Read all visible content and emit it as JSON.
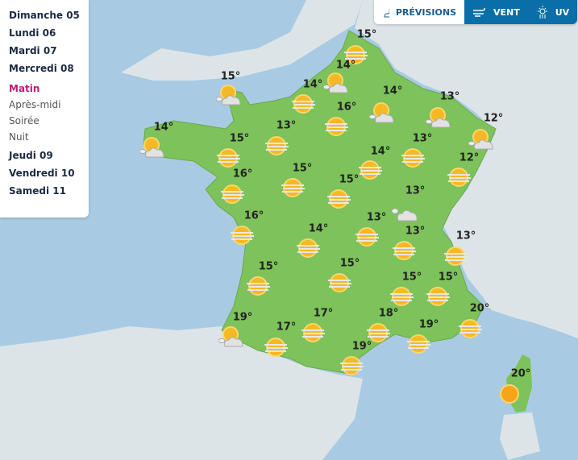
{
  "days_before": [
    "Dimanche 05",
    "Lundi 06",
    "Mardi 07",
    "Mercredi 08"
  ],
  "slots": [
    {
      "label": "Matin",
      "active": true
    },
    {
      "label": "Après-midi"
    },
    {
      "label": "Soirée"
    },
    {
      "label": "Nuit"
    }
  ],
  "days_after": [
    "Jeudi 09",
    "Vendredi 10",
    "Samedi 11"
  ],
  "tabs": [
    {
      "label": "PRÉVISIONS",
      "icon": "sun-cloud-icon",
      "active": true
    },
    {
      "label": "VENT",
      "icon": "wind-icon"
    },
    {
      "label": "UV",
      "icon": "uv-icon"
    }
  ],
  "colors": {
    "sea": "#a8cbe3",
    "land": "#dde4e8",
    "france": "#7dc25a",
    "active": "#c2187e",
    "tab": "#0a6ea8"
  },
  "stations": [
    {
      "t": "15°",
      "icon": "sun-fog"
    },
    {
      "t": "14°",
      "icon": "sun-cloud"
    },
    {
      "t": "15°",
      "icon": "sun-cloud"
    },
    {
      "t": "14°",
      "icon": "sun-fog"
    },
    {
      "t": "16°",
      "icon": "sun-fog"
    },
    {
      "t": "14°",
      "icon": "sun-cloud"
    },
    {
      "t": "13°",
      "icon": "sun-cloud"
    },
    {
      "t": "12°",
      "icon": "sun-cloud"
    },
    {
      "t": "14°",
      "icon": "sun-cloud"
    },
    {
      "t": "15°",
      "icon": "sun-fog"
    },
    {
      "t": "13°",
      "icon": "sun-fog"
    },
    {
      "t": "14°",
      "icon": "sun-fog"
    },
    {
      "t": "13°",
      "icon": "sun-fog"
    },
    {
      "t": "12°",
      "icon": "sun-fog"
    },
    {
      "t": "16°",
      "icon": "sun-fog"
    },
    {
      "t": "15°",
      "icon": "sun-fog"
    },
    {
      "t": "15°",
      "icon": "sun-fog"
    },
    {
      "t": "13°",
      "icon": "cloud"
    },
    {
      "t": "16°",
      "icon": "sun-fog"
    },
    {
      "t": "14°",
      "icon": "sun-fog"
    },
    {
      "t": "13°",
      "icon": "sun-fog"
    },
    {
      "t": "13°",
      "icon": "sun-fog"
    },
    {
      "t": "13°",
      "icon": "sun-fog"
    },
    {
      "t": "15°",
      "icon": "sun-fog"
    },
    {
      "t": "15°",
      "icon": "sun-fog"
    },
    {
      "t": "15°",
      "icon": "sun-fog"
    },
    {
      "t": "15°",
      "icon": "sun-fog"
    },
    {
      "t": "19°",
      "icon": "sun-cloud"
    },
    {
      "t": "17°",
      "icon": "sun-fog"
    },
    {
      "t": "18°",
      "icon": "sun-fog"
    },
    {
      "t": "20°",
      "icon": "sun-fog"
    },
    {
      "t": "17°",
      "icon": "sun-fog"
    },
    {
      "t": "19°",
      "icon": "sun-fog"
    },
    {
      "t": "19°",
      "icon": "sun-fog"
    },
    {
      "t": "20°",
      "icon": "sun"
    }
  ]
}
